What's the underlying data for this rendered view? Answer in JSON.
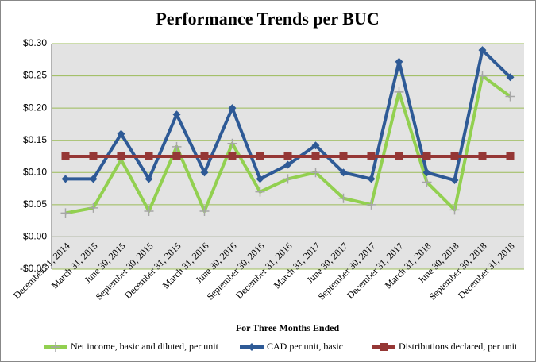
{
  "chart_data": {
    "type": "line",
    "title": "Performance Trends per BUC",
    "x_label": "For Three Months Ended",
    "categories": [
      "December 31, 2014",
      "March 31, 2015",
      "June 30, 2015",
      "September 30, 2015",
      "December 31, 2015",
      "March 31, 2016",
      "June 30, 2016",
      "September 30, 2016",
      "December 31, 2016",
      "March 31, 2017",
      "June 30, 2017",
      "September 30, 2017",
      "December 31, 2017",
      "March 31, 2018",
      "June 30, 2018",
      "September 30, 2018",
      "December 31, 2018"
    ],
    "series": [
      {
        "name": "Net income, basic and diluted, per unit",
        "color": "#92d050",
        "marker": "plus",
        "values": [
          0.037,
          0.045,
          0.12,
          0.04,
          0.14,
          0.04,
          0.145,
          0.07,
          0.09,
          0.1,
          0.06,
          0.05,
          0.225,
          0.085,
          0.042,
          0.25,
          0.218
        ]
      },
      {
        "name": "CAD per unit, basic",
        "color": "#2e5a96",
        "marker": "diamond",
        "values": [
          0.09,
          0.09,
          0.16,
          0.09,
          0.19,
          0.1,
          0.2,
          0.09,
          0.112,
          0.142,
          0.1,
          0.09,
          0.272,
          0.1,
          0.088,
          0.29,
          0.248
        ]
      },
      {
        "name": "Distributions declared, per unit",
        "color": "#953735",
        "marker": "square",
        "values": [
          0.125,
          0.125,
          0.125,
          0.125,
          0.125,
          0.125,
          0.125,
          0.125,
          0.125,
          0.125,
          0.125,
          0.125,
          0.125,
          0.125,
          0.125,
          0.125,
          0.125
        ]
      }
    ],
    "ylim": [
      -0.05,
      0.3
    ],
    "yticks": [
      {
        "value": -0.05,
        "label": "-$0.05"
      },
      {
        "value": 0,
        "label": "$0.00"
      },
      {
        "value": 0.05,
        "label": "$0.05"
      },
      {
        "value": 0.1,
        "label": "$0.10"
      },
      {
        "value": 0.15,
        "label": "$0.15"
      },
      {
        "value": 0.2,
        "label": "$0.20"
      },
      {
        "value": 0.25,
        "label": "$0.25"
      },
      {
        "value": 0.3,
        "label": "$0.30"
      }
    ],
    "grid": true,
    "legend": "bottom"
  }
}
